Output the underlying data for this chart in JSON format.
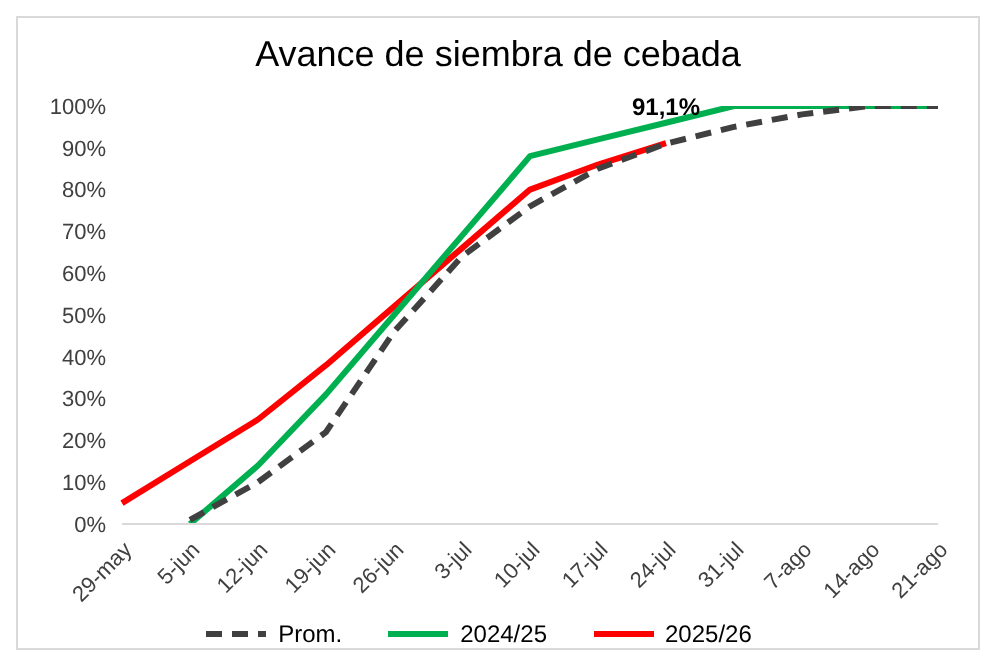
{
  "chart_data": {
    "type": "line",
    "title": "Avance de siembra de cebada",
    "categories": [
      "29-may",
      "5-jun",
      "12-jun",
      "19-jun",
      "26-jun",
      "3-jul",
      "10-jul",
      "17-jul",
      "24-jul",
      "31-jul",
      "7-ago",
      "14-ago",
      "21-ago"
    ],
    "series": [
      {
        "name": "Prom.",
        "color": "#404040",
        "line_style": "dashed",
        "values": [
          null,
          1,
          10,
          22,
          46,
          64,
          76,
          85,
          91,
          95,
          98,
          100,
          100
        ]
      },
      {
        "name": "2024/25",
        "color": "#00b050",
        "values": [
          null,
          0,
          14,
          31,
          50,
          69,
          88,
          92,
          96,
          100,
          100,
          100,
          100
        ]
      },
      {
        "name": "2025/26",
        "color": "#ff0000",
        "values": [
          5,
          15,
          25,
          38,
          52,
          66,
          80,
          86,
          91.1,
          null,
          null,
          null,
          null
        ],
        "value_labels": [
          null,
          null,
          null,
          null,
          null,
          null,
          null,
          null,
          "91,1%",
          null,
          null,
          null,
          null
        ]
      }
    ],
    "ylim": [
      0,
      100
    ],
    "yticks": [
      {
        "value": 0,
        "label": "0%"
      },
      {
        "value": 10,
        "label": "10%"
      },
      {
        "value": 20,
        "label": "20%"
      },
      {
        "value": 30,
        "label": "30%"
      },
      {
        "value": 40,
        "label": "40%"
      },
      {
        "value": 50,
        "label": "50%"
      },
      {
        "value": 60,
        "label": "60%"
      },
      {
        "value": 70,
        "label": "70%"
      },
      {
        "value": 80,
        "label": "80%"
      },
      {
        "value": 90,
        "label": "90%"
      },
      {
        "value": 100,
        "label": "100%"
      }
    ],
    "grid": false,
    "legend": "bottom",
    "marker": "none"
  }
}
